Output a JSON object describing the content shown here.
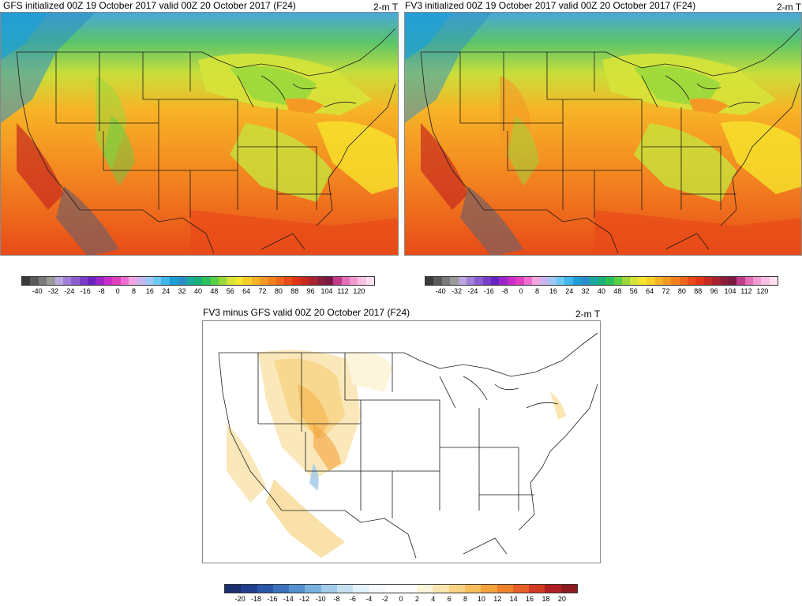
{
  "panels": {
    "gfs": {
      "title": "GFS initialized 00Z 19 October 2017 valid 00Z 20 October 2017 (F24)",
      "variable": "2-m T"
    },
    "fv3": {
      "title": "FV3 initialized 00Z 19 October 2017 valid 00Z 20 October 2017 (F24)",
      "variable": "2-m T"
    },
    "diff": {
      "title": "FV3 minus GFS valid 00Z 20 October 2017 (F24)",
      "variable": "2-m T"
    }
  },
  "temp_colorbar": {
    "tick_labels": [
      "-40",
      "-32",
      "-24",
      "-16",
      "-8",
      "0",
      "8",
      "16",
      "24",
      "32",
      "40",
      "48",
      "56",
      "64",
      "72",
      "80",
      "88",
      "96",
      "104",
      "112",
      "120"
    ],
    "colors": [
      "#3a3a3a",
      "#5a5a5a",
      "#7a7a7a",
      "#9a9a9a",
      "#b9a7de",
      "#a07fd8",
      "#8a5dd0",
      "#7a3fc8",
      "#6a22c0",
      "#9b27c9",
      "#c82cc9",
      "#e040c0",
      "#ef6fd0",
      "#f4a6e2",
      "#c8b6ee",
      "#9fc8f5",
      "#6fc8f5",
      "#3fb7ea",
      "#1c9fd8",
      "#2a8fc8",
      "#1aa8a0",
      "#17b07a",
      "#2cc05a",
      "#5ad048",
      "#9ad83c",
      "#d6e338",
      "#f6e52c",
      "#f8cf28",
      "#f7b326",
      "#f49a24",
      "#f2801f",
      "#ee661c",
      "#e84a18",
      "#df3416",
      "#c82a20",
      "#a82230",
      "#8a1e3a",
      "#7a1840",
      "#c23a8a",
      "#e26fb8",
      "#f09ad0",
      "#f8c0e2",
      "#fce0f0"
    ]
  },
  "diff_colorbar": {
    "tick_labels": [
      "-20",
      "-18",
      "-16",
      "-14",
      "-12",
      "-10",
      "-8",
      "-6",
      "-4",
      "-2",
      "0",
      "2",
      "4",
      "6",
      "8",
      "10",
      "12",
      "14",
      "16",
      "18",
      "20"
    ],
    "colors": [
      "#1a2f6f",
      "#213f8c",
      "#2a57a8",
      "#3a72bd",
      "#5391cf",
      "#78b1e0",
      "#a2cdea",
      "#c6e2f1",
      "#e3f1f8",
      "#f4f9fc",
      "#ffffff",
      "#ffffff",
      "#fdf4dc",
      "#fbe6b2",
      "#f8d384",
      "#f6bd5a",
      "#f3a23c",
      "#ef822d",
      "#e65f27",
      "#d23a24",
      "#b01e22",
      "#8c1a1f"
    ]
  },
  "colors": {
    "state_lines": "#1a1a1a",
    "diff_warm": "#f0b44a",
    "diff_cool": "#9ec8ea"
  }
}
